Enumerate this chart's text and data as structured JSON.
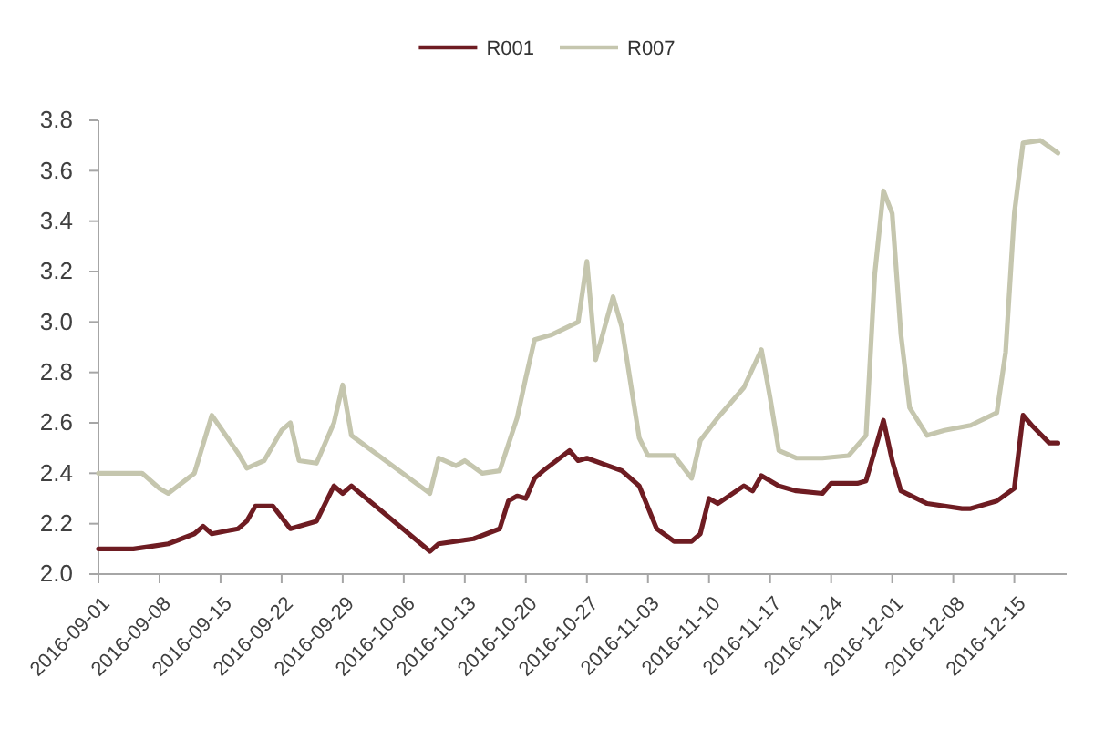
{
  "chart_data": {
    "type": "line",
    "xlim": [
      "2016-09-01",
      "2016-12-21"
    ],
    "xticks": [
      "2016-09-01",
      "2016-09-08",
      "2016-09-15",
      "2016-09-22",
      "2016-09-29",
      "2016-10-06",
      "2016-10-13",
      "2016-10-20",
      "2016-10-27",
      "2016-11-03",
      "2016-11-10",
      "2016-11-17",
      "2016-11-24",
      "2016-12-01",
      "2016-12-08",
      "2016-12-15"
    ],
    "ylim": [
      2.0,
      3.8
    ],
    "yticks": [
      {
        "value": 2,
        "label": "2.0"
      },
      2.2,
      2.4,
      2.6,
      2.8,
      {
        "value": 3,
        "label": "3.0"
      },
      3.2,
      3.4,
      3.6,
      3.8
    ],
    "grid": false,
    "legend": "top",
    "series": [
      {
        "name": "R001",
        "color": "#6e1c22",
        "x": [
          "2016-09-01",
          "2016-09-05",
          "2016-09-07",
          "2016-09-09",
          "2016-09-12",
          "2016-09-13",
          "2016-09-14",
          "2016-09-17",
          "2016-09-18",
          "2016-09-19",
          "2016-09-21",
          "2016-09-23",
          "2016-09-24",
          "2016-09-26",
          "2016-09-28",
          "2016-09-29",
          "2016-09-30",
          "2016-10-09",
          "2016-10-10",
          "2016-10-14",
          "2016-10-17",
          "2016-10-18",
          "2016-10-19",
          "2016-10-20",
          "2016-10-21",
          "2016-10-22",
          "2016-10-25",
          "2016-10-26",
          "2016-10-27",
          "2016-10-31",
          "2016-11-02",
          "2016-11-04",
          "2016-11-06",
          "2016-11-08",
          "2016-11-09",
          "2016-11-10",
          "2016-11-11",
          "2016-11-14",
          "2016-11-15",
          "2016-11-16",
          "2016-11-18",
          "2016-11-20",
          "2016-11-23",
          "2016-11-24",
          "2016-11-27",
          "2016-11-28",
          "2016-11-30",
          "2016-12-01",
          "2016-12-02",
          "2016-12-05",
          "2016-12-09",
          "2016-12-10",
          "2016-12-13",
          "2016-12-15",
          "2016-12-16",
          "2016-12-17",
          "2016-12-19",
          "2016-12-20"
        ],
        "values": [
          2.1,
          2.1,
          2.11,
          2.12,
          2.16,
          2.19,
          2.16,
          2.18,
          2.21,
          2.27,
          2.27,
          2.18,
          2.19,
          2.21,
          2.35,
          2.32,
          2.35,
          2.09,
          2.12,
          2.14,
          2.18,
          2.29,
          2.31,
          2.3,
          2.38,
          2.41,
          2.49,
          2.45,
          2.46,
          2.41,
          2.35,
          2.18,
          2.13,
          2.13,
          2.16,
          2.3,
          2.28,
          2.35,
          2.33,
          2.39,
          2.35,
          2.33,
          2.32,
          2.36,
          2.36,
          2.37,
          2.61,
          2.45,
          2.33,
          2.28,
          2.26,
          2.26,
          2.29,
          2.34,
          2.63,
          2.59,
          2.52,
          2.52
        ]
      },
      {
        "name": "R007",
        "color": "#c5c6ae",
        "x": [
          "2016-09-01",
          "2016-09-06",
          "2016-09-08",
          "2016-09-09",
          "2016-09-12",
          "2016-09-14",
          "2016-09-17",
          "2016-09-18",
          "2016-09-20",
          "2016-09-22",
          "2016-09-23",
          "2016-09-24",
          "2016-09-26",
          "2016-09-28",
          "2016-09-29",
          "2016-09-30",
          "2016-10-09",
          "2016-10-10",
          "2016-10-12",
          "2016-10-13",
          "2016-10-15",
          "2016-10-17",
          "2016-10-19",
          "2016-10-20",
          "2016-10-21",
          "2016-10-23",
          "2016-10-26",
          "2016-10-27",
          "2016-10-28",
          "2016-10-30",
          "2016-10-31",
          "2016-11-02",
          "2016-11-03",
          "2016-11-06",
          "2016-11-08",
          "2016-11-09",
          "2016-11-11",
          "2016-11-14",
          "2016-11-16",
          "2016-11-17",
          "2016-11-18",
          "2016-11-20",
          "2016-11-23",
          "2016-11-26",
          "2016-11-28",
          "2016-11-29",
          "2016-11-30",
          "2016-12-01",
          "2016-12-02",
          "2016-12-03",
          "2016-12-05",
          "2016-12-07",
          "2016-12-10",
          "2016-12-13",
          "2016-12-14",
          "2016-12-15",
          "2016-12-16",
          "2016-12-18",
          "2016-12-20"
        ],
        "values": [
          2.4,
          2.4,
          2.34,
          2.32,
          2.4,
          2.63,
          2.48,
          2.42,
          2.45,
          2.57,
          2.6,
          2.45,
          2.44,
          2.6,
          2.75,
          2.55,
          2.32,
          2.46,
          2.43,
          2.45,
          2.4,
          2.41,
          2.62,
          2.78,
          2.93,
          2.95,
          3.0,
          3.24,
          2.85,
          3.1,
          2.98,
          2.54,
          2.47,
          2.47,
          2.38,
          2.53,
          2.62,
          2.74,
          2.89,
          2.7,
          2.49,
          2.46,
          2.46,
          2.47,
          2.55,
          3.19,
          3.52,
          3.43,
          2.95,
          2.66,
          2.55,
          2.57,
          2.59,
          2.64,
          2.88,
          3.43,
          3.71,
          3.72,
          3.67
        ]
      }
    ]
  }
}
